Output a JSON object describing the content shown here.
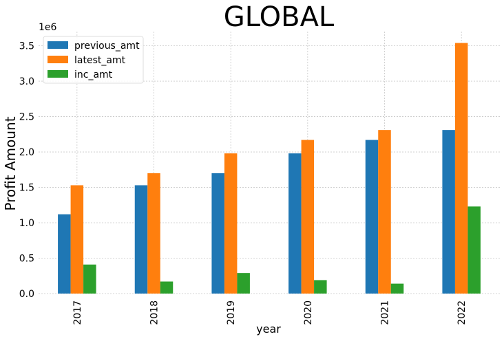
{
  "chart_data": {
    "type": "bar",
    "title": "GLOBAL",
    "xlabel": "year",
    "ylabel": "Profit Amount",
    "y_offset_label": "1e6",
    "categories": [
      "2017",
      "2018",
      "2019",
      "2020",
      "2021",
      "2022"
    ],
    "series": [
      {
        "name": "previous_amt",
        "color": "#1f77b4",
        "values": [
          1120000,
          1530000,
          1700000,
          1980000,
          2170000,
          2310000
        ]
      },
      {
        "name": "latest_amt",
        "color": "#ff7f0e",
        "values": [
          1530000,
          1700000,
          1980000,
          2170000,
          2310000,
          3540000
        ]
      },
      {
        "name": "inc_amt",
        "color": "#2ca02c",
        "values": [
          410000,
          170000,
          290000,
          190000,
          140000,
          1230000
        ]
      }
    ],
    "ylim": [
      0,
      3700000
    ],
    "yticks": [
      0,
      500000,
      1000000,
      1500000,
      2000000,
      2500000,
      3000000,
      3500000
    ],
    "ytick_labels": [
      "0.0",
      "0.5",
      "1.0",
      "1.5",
      "2.0",
      "2.5",
      "3.0",
      "3.5"
    ],
    "grid": true,
    "legend_position": "top-left"
  }
}
